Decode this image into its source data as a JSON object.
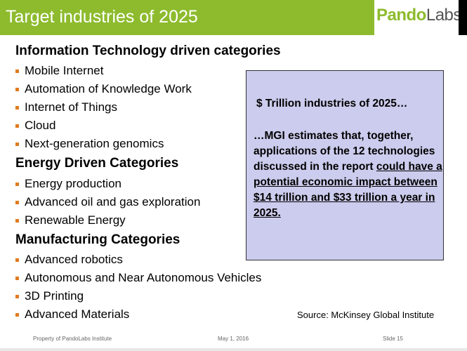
{
  "header": {
    "title": "Target industries of 2025",
    "logo": "PandoLabs",
    "accent": "#8dbb2d"
  },
  "sections": [
    {
      "heading": "Information Technology driven categories",
      "items": [
        "Mobile Internet",
        "Automation of Knowledge Work",
        "Internet of Things",
        "Cloud",
        "Next-generation genomics"
      ]
    },
    {
      "heading": "Energy Driven Categories",
      "items": [
        "Energy production",
        "Advanced oil and gas exploration",
        "Renewable Energy"
      ]
    },
    {
      "heading": "Manufacturing Categories",
      "items": [
        "Advanced robotics",
        "Autonomous and Near Autonomous Vehicles",
        "3D Printing",
        "Advanced Materials"
      ]
    }
  ],
  "callout": {
    "heading": "$ Trillion industries of 2025…",
    "text_plain": "…MGI estimates that, together, applications of the 12 technologies discussed in the report ",
    "text_underlined": "could have a potential economic impact between $14 trillion and $33 trillion a year in 2025."
  },
  "source": "Source: McKinsey Global Institute",
  "footer": {
    "left": "Property of PandoLabs Institute",
    "center": "May 1, 2016",
    "right": "Slide 15"
  }
}
